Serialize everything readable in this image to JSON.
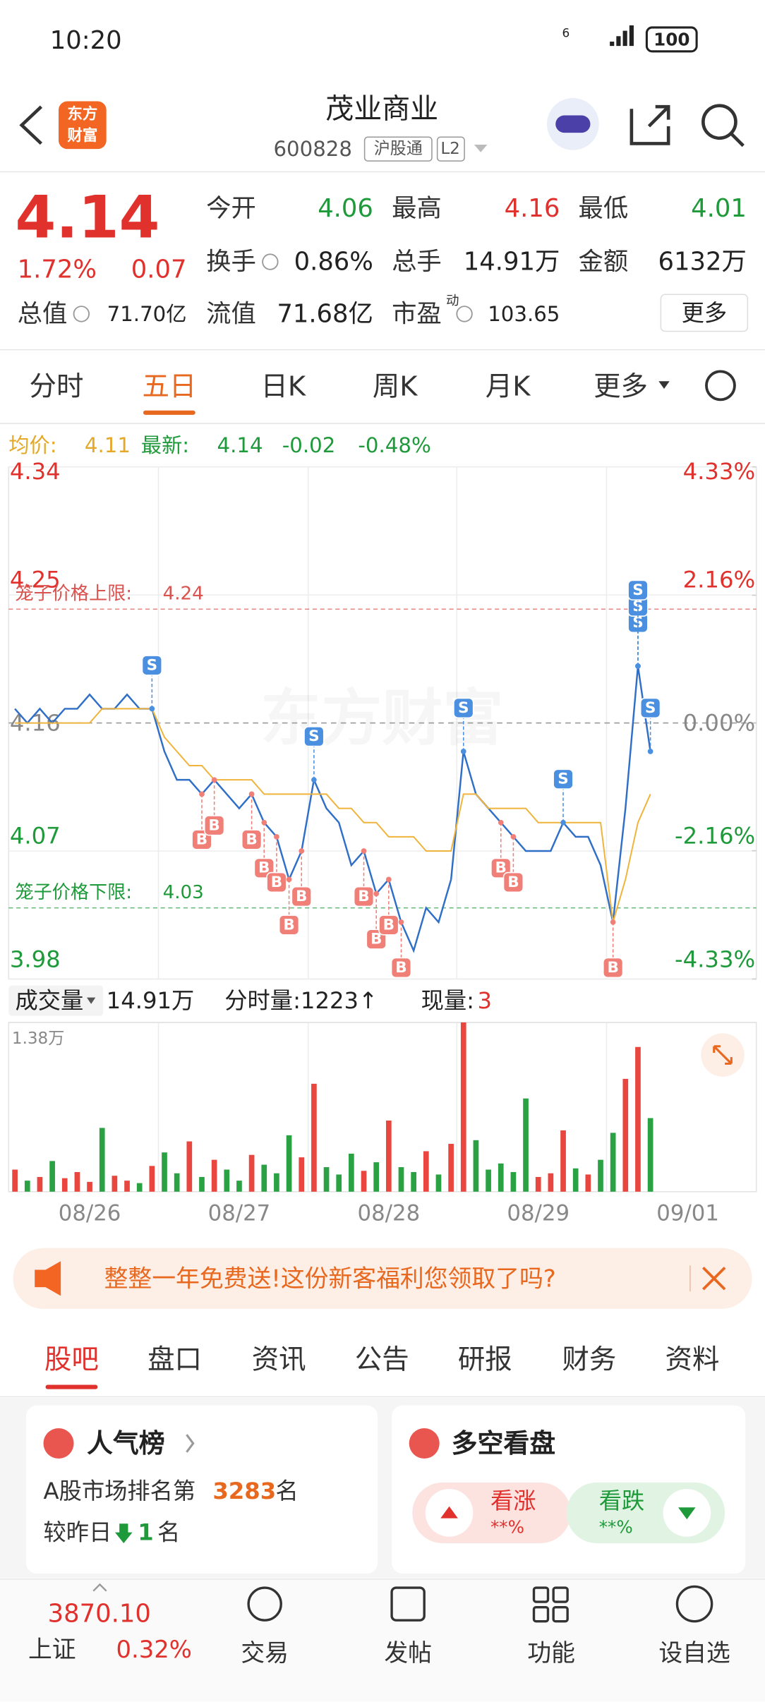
{
  "status": {
    "time": "10:20",
    "signal": "6",
    "battery": "100"
  },
  "header": {
    "logo": [
      "东方",
      "财富"
    ],
    "name": "茂业商业",
    "code": "600828",
    "tags": [
      "沪股通",
      "L2"
    ]
  },
  "quote": {
    "price": "4.14",
    "change_pct": "1.72%",
    "change": "0.07",
    "more": "更多",
    "fields": [
      {
        "label": "今开",
        "value": "4.06",
        "color": "#1f9a3b"
      },
      {
        "label": "最高",
        "value": "4.16",
        "color": "#e0312d"
      },
      {
        "label": "最低",
        "value": "4.01",
        "color": "#1f9a3b"
      },
      {
        "label": "换手",
        "value": "0.86%",
        "color": "#222222",
        "info": true
      },
      {
        "label": "总手",
        "value": "14.91万",
        "color": "#222222"
      },
      {
        "label": "金额",
        "value": "6132万",
        "color": "#222222"
      },
      {
        "label": "总值",
        "value": "71.70亿",
        "color": "#222222",
        "info": true
      },
      {
        "label": "流值",
        "value": "71.68亿",
        "color": "#222222"
      },
      {
        "label": "市盈",
        "sup": "动",
        "value": "103.65",
        "color": "#222222",
        "info": true
      }
    ]
  },
  "tabs": {
    "items": [
      "分时",
      "五日",
      "日K",
      "周K",
      "月K",
      "更多"
    ],
    "active": 1
  },
  "legend": {
    "avg_label": "均价:",
    "avg": "4.11",
    "last_label": "最新:",
    "last": "4.14",
    "change": "-0.02",
    "change_pct": "-0.48%"
  },
  "watermark": "东方财富",
  "chart_data": {
    "type": "line",
    "categories": [
      null,
      null,
      null,
      null,
      null,
      null,
      "08/26",
      null,
      null,
      null,
      null,
      null,
      null,
      null,
      null,
      null,
      null,
      null,
      "08/27",
      null,
      null,
      null,
      null,
      null,
      null,
      null,
      null,
      null,
      null,
      null,
      "08/28",
      null,
      null,
      null,
      null,
      null,
      null,
      null,
      null,
      null,
      null,
      null,
      "08/29",
      null,
      null,
      null,
      null,
      null,
      null,
      null,
      null,
      null,
      null,
      null,
      "09/01",
      null,
      null,
      null,
      null,
      null
    ],
    "series": [
      {
        "color": "#2f6fc8",
        "values": [
          4.17,
          4.16,
          4.17,
          4.16,
          4.17,
          4.17,
          4.18,
          4.17,
          4.17,
          4.18,
          4.17,
          4.17,
          4.14,
          4.12,
          4.12,
          4.11,
          4.12,
          4.11,
          4.1,
          4.11,
          4.09,
          4.08,
          4.05,
          4.07,
          4.12,
          4.1,
          4.09,
          4.06,
          4.07,
          4.04,
          4.05,
          4.02,
          4.0,
          4.03,
          4.02,
          4.05,
          4.14,
          4.11,
          4.1,
          4.09,
          4.08,
          4.07,
          4.07,
          4.07,
          4.09,
          4.08,
          4.08,
          4.06,
          4.02,
          4.1,
          4.2,
          4.14,
          null,
          null,
          null,
          null,
          null,
          null,
          null,
          null
        ]
      },
      {
        "color": "#f0b43c",
        "values": [
          4.16,
          4.16,
          4.16,
          4.16,
          4.16,
          4.16,
          4.16,
          4.17,
          4.17,
          4.17,
          4.17,
          4.17,
          4.15,
          4.14,
          4.13,
          4.13,
          4.12,
          4.12,
          4.12,
          4.12,
          4.11,
          4.11,
          4.11,
          4.11,
          4.11,
          4.11,
          4.1,
          4.1,
          4.09,
          4.09,
          4.08,
          4.08,
          4.08,
          4.07,
          4.07,
          4.07,
          4.11,
          4.11,
          4.1,
          4.1,
          4.1,
          4.1,
          4.09,
          4.09,
          4.09,
          4.09,
          4.09,
          4.09,
          4.02,
          4.05,
          4.09,
          4.11,
          null,
          null,
          null,
          null,
          null,
          null,
          null,
          null
        ]
      }
    ],
    "ylim": [
      3.98,
      4.34
    ],
    "yticks": [
      4.34,
      4.25,
      4.16,
      4.07,
      3.98
    ],
    "y2lim": [
      -4.33,
      4.33
    ],
    "y2ticks": [
      {
        "value": 4.33,
        "label": "4.33%"
      },
      {
        "value": 2.16,
        "label": "2.16%"
      },
      {
        "value": 0,
        "label": "0.00%"
      },
      {
        "value": -2.16,
        "label": "-2.16%"
      },
      {
        "value": -4.33,
        "label": "-4.33%"
      }
    ],
    "limits": [
      {
        "label": "笼子价格上限:",
        "value": 4.24,
        "color": "#d9534f"
      },
      {
        "label": "笼子价格下限:",
        "value": 4.03,
        "color": "#1f9a3b"
      }
    ],
    "markers": [
      {
        "label": "S",
        "index": 11
      },
      {
        "label": "S",
        "index": 24
      },
      {
        "label": "S",
        "index": 36
      },
      {
        "label": "S",
        "index": 44
      },
      {
        "label": "S",
        "index": 50
      },
      {
        "label": "S",
        "index": 50
      },
      {
        "label": "S",
        "index": 50
      },
      {
        "label": "S",
        "index": 51
      },
      {
        "label": "B",
        "index": 15
      },
      {
        "label": "B",
        "index": 16
      },
      {
        "label": "B",
        "index": 19
      },
      {
        "label": "B",
        "index": 20
      },
      {
        "label": "B",
        "index": 21
      },
      {
        "label": "B",
        "index": 22
      },
      {
        "label": "B",
        "index": 23
      },
      {
        "label": "B",
        "index": 28
      },
      {
        "label": "B",
        "index": 29
      },
      {
        "label": "B",
        "index": 30
      },
      {
        "label": "B",
        "index": 31
      },
      {
        "label": "B",
        "index": 39
      },
      {
        "label": "B",
        "index": 40
      },
      {
        "label": "B",
        "index": 48
      }
    ]
  },
  "volume": {
    "type": "bar",
    "label": "成交量",
    "total": "14.91万",
    "tick": "分时量:1223↑",
    "now_label": "现量:",
    "now": "3",
    "ylim": [
      0,
      13800
    ],
    "yticks": [
      {
        "value": 13800,
        "label": "1.38万"
      }
    ],
    "values": [
      1800,
      900,
      1200,
      2500,
      1100,
      1600,
      800,
      5200,
      1300,
      900,
      700,
      2100,
      3200,
      1500,
      4100,
      1200,
      2600,
      1800,
      900,
      3000,
      2200,
      1500,
      4600,
      2800,
      8800,
      2000,
      1400,
      3100,
      1700,
      2400,
      5800,
      2000,
      1600,
      3300,
      1400,
      3900,
      13800,
      4200,
      1800,
      2300,
      1600,
      7600,
      1200,
      1500,
      5000,
      1900,
      1400,
      2600,
      4800,
      9200,
      11800,
      6000,
      null,
      null,
      null,
      null,
      null,
      null,
      null,
      null
    ]
  },
  "banner": "整整一年免费送!这份新客福利您领取了吗?",
  "sections": {
    "items": [
      "股吧",
      "盘口",
      "资讯",
      "公告",
      "研报",
      "财务",
      "资料"
    ],
    "active": 0
  },
  "popular": {
    "title": "人气榜",
    "rank_prefix": "A股市场排名第",
    "rank": "3283",
    "unit": "名",
    "compare": "较昨日",
    "delta": "1"
  },
  "sentiment": {
    "title": "多空看盘",
    "up": "看涨",
    "up_pct": "**%",
    "down": "看跌",
    "down_pct": "**%"
  },
  "bottom": {
    "index_value": "3870.10",
    "index_name": "上证",
    "index_change": "0.32%",
    "items": [
      "交易",
      "发帖",
      "功能",
      "设自选"
    ]
  }
}
